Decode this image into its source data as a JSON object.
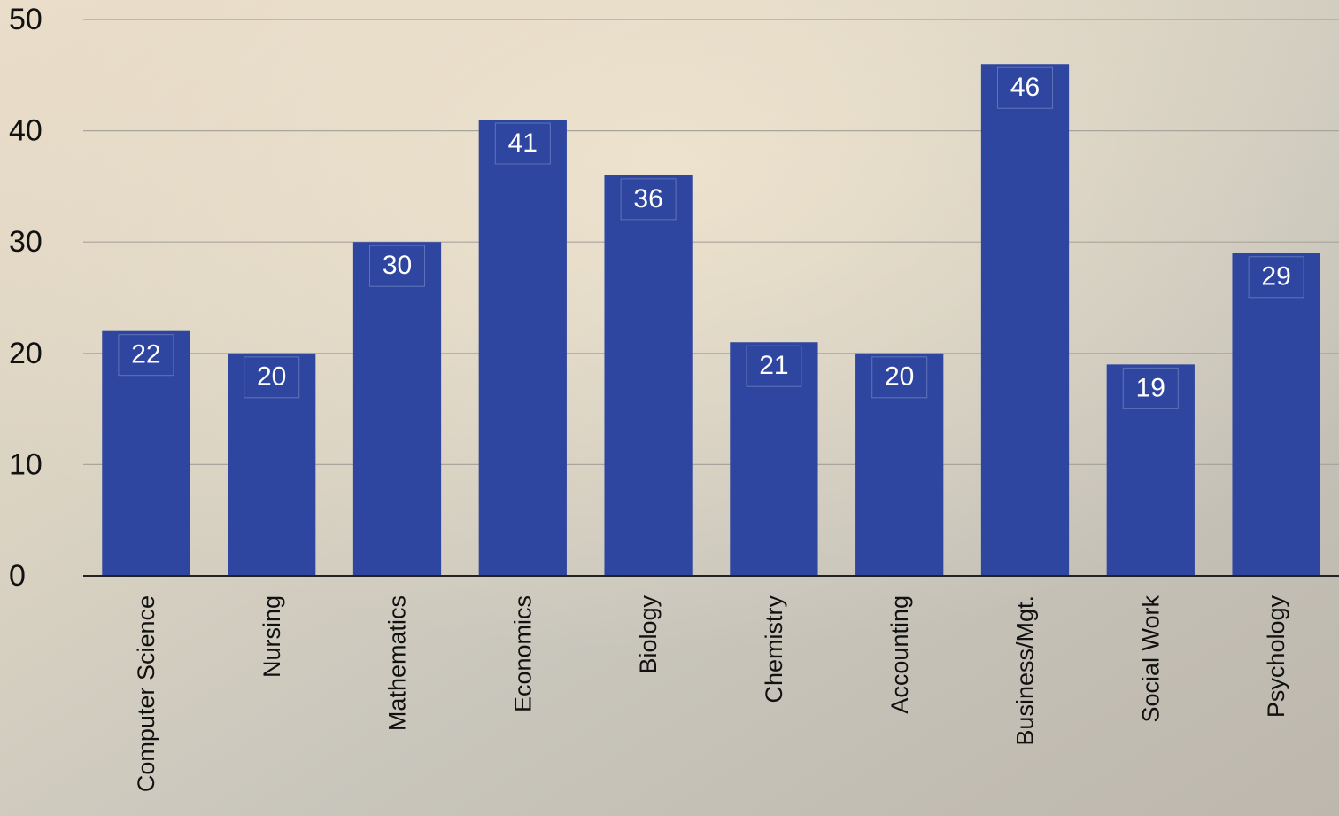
{
  "chart_data": {
    "type": "bar",
    "categories": [
      "Computer Science",
      "Nursing",
      "Mathematics",
      "Economics",
      "Biology",
      "Chemistry",
      "Accounting",
      "Business/Mgt.",
      "Social Work",
      "Psychology"
    ],
    "values": [
      22,
      20,
      30,
      41,
      36,
      21,
      20,
      46,
      19,
      29
    ],
    "color": "#2f46a0",
    "ylim": [
      0,
      50
    ],
    "yticks": [
      0,
      10,
      20,
      30,
      40,
      50
    ],
    "grid": true
  }
}
